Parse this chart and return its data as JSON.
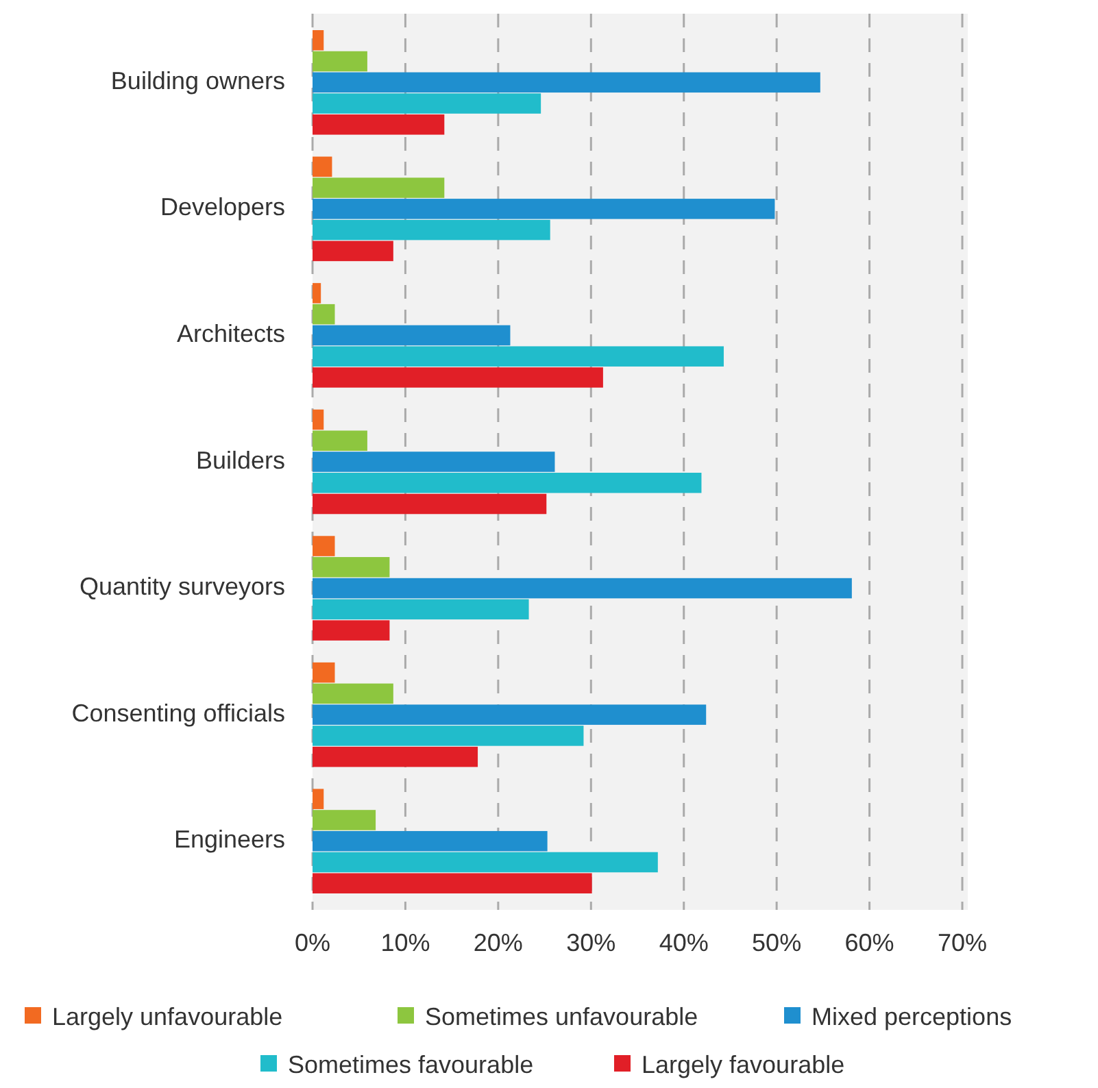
{
  "chart_data": {
    "type": "bar",
    "orientation": "horizontal",
    "categories": [
      "Building owners",
      "Developers",
      "Architects",
      "Builders",
      "Quantity surveyors",
      "Consenting officials",
      "Engineers"
    ],
    "series": [
      {
        "name": "Largely unfavourable",
        "color": "#f26a21",
        "values": [
          1.2,
          2.1,
          0.9,
          1.2,
          2.4,
          2.4,
          1.2
        ]
      },
      {
        "name": "Sometimes unfavourable",
        "color": "#8dc63f",
        "values": [
          5.9,
          14.2,
          2.4,
          5.9,
          8.3,
          8.7,
          6.8
        ]
      },
      {
        "name": "Mixed perceptions",
        "color": "#1f8fcf",
        "values": [
          54.7,
          49.8,
          21.3,
          26.1,
          58.1,
          42.4,
          25.3
        ]
      },
      {
        "name": "Sometimes favourable",
        "color": "#21bccb",
        "values": [
          24.6,
          25.6,
          44.3,
          41.9,
          23.3,
          29.2,
          37.2
        ]
      },
      {
        "name": "Largely favourable",
        "color": "#e11f27",
        "values": [
          14.2,
          8.7,
          31.3,
          25.2,
          8.3,
          17.8,
          30.1
        ]
      }
    ],
    "xlim": [
      0,
      70
    ],
    "xticks": [
      {
        "value": 0,
        "label": "0%"
      },
      {
        "value": 10,
        "label": "10%"
      },
      {
        "value": 20,
        "label": "20%"
      },
      {
        "value": 30,
        "label": "30%"
      },
      {
        "value": 40,
        "label": "40%"
      },
      {
        "value": 50,
        "label": "50%"
      },
      {
        "value": 60,
        "label": "60%"
      },
      {
        "value": 70,
        "label": "70%"
      }
    ],
    "grid": "x",
    "legend": "bottom"
  }
}
